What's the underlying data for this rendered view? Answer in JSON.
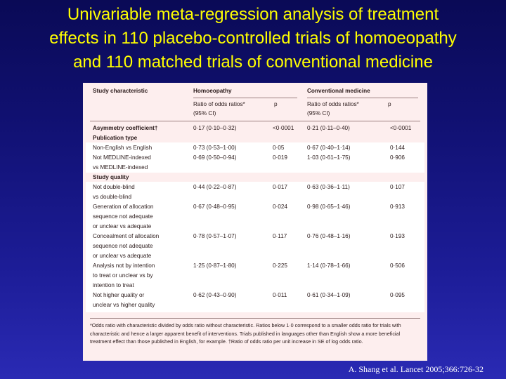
{
  "slide": {
    "title_lines": [
      "Univariable meta-regression analysis of treatment",
      "effects in 110 placebo-controlled trials of homoeopathy",
      "and 110 matched trials of conventional medicine"
    ],
    "citation": "A. Shang et al. Lancet 2005;366:726-32"
  },
  "table": {
    "header": {
      "study_characteristic": "Study characteristic",
      "homoeopathy": "Homoeopathy",
      "conventional": "Conventional medicine",
      "ror_line1": "Ratio of odds ratios*",
      "ror_line2": "(95% CI)",
      "p": "p"
    },
    "asymmetry": {
      "label": "Asymmetry coefficient†",
      "h_ror": "0·17 (0·10–0·32)",
      "h_p": "<0·0001",
      "c_ror": "0·21 (0·11–0·40)",
      "c_p": "<0·0001"
    },
    "section_publication": "Publication type",
    "publication_rows": [
      {
        "lines": [
          "Non-English vs English"
        ],
        "h_ror": "0·73 (0·53–1·00)",
        "h_p": "0·05",
        "c_ror": "0·67 (0·40–1·14)",
        "c_p": "0·144"
      },
      {
        "lines": [
          "Not MEDLINE-indexed",
          "vs MEDLINE-indexed"
        ],
        "h_ror": "0·69 (0·50–0·94)",
        "h_p": "0·019",
        "c_ror": "1·03 (0·61–1·75)",
        "c_p": "0·906"
      }
    ],
    "section_quality": "Study quality",
    "quality_rows": [
      {
        "lines": [
          "Not double-blind",
          "vs double-blind"
        ],
        "h_ror": "0·44 (0·22–0·87)",
        "h_p": "0·017",
        "c_ror": "0·63 (0·36–1·11)",
        "c_p": "0·107"
      },
      {
        "lines": [
          "Generation of allocation",
          "sequence not adequate",
          "or unclear vs adequate"
        ],
        "h_ror": "0·67 (0·48–0·95)",
        "h_p": "0·024",
        "c_ror": "0·98 (0·65–1·46)",
        "c_p": "0·913"
      },
      {
        "lines": [
          "Concealment of allocation",
          "sequence not adequate",
          "or unclear vs adequate"
        ],
        "h_ror": "0·78 (0·57–1·07)",
        "h_p": "0·117",
        "c_ror": "0·76 (0·48–1·16)",
        "c_p": "0·193"
      },
      {
        "lines": [
          "Analysis not by intention",
          "to treat or unclear vs by",
          "intention to treat"
        ],
        "h_ror": "1·25 (0·87–1·80)",
        "h_p": "0·225",
        "c_ror": "1·14 (0·78–1·66)",
        "c_p": "0·506"
      },
      {
        "lines": [
          "Not higher quality or",
          "unclear vs higher quality"
        ],
        "h_ror": "0·62 (0·43–0·90)",
        "h_p": "0·011",
        "c_ror": "0·61 (0·34–1·09)",
        "c_p": "0·095"
      }
    ],
    "footnote": "*Odds ratio with characteristic divided by odds ratio without characteristic. Ratios below 1·0 correspond to a smaller odds ratio for trials with characteristic and hence a larger apparent benefit of interventions. Trials published in languages other than English show a more beneficial treatment effect than those published in English, for example. †Ratio of odds ratio per unit increase in SE of log odds ratio."
  }
}
